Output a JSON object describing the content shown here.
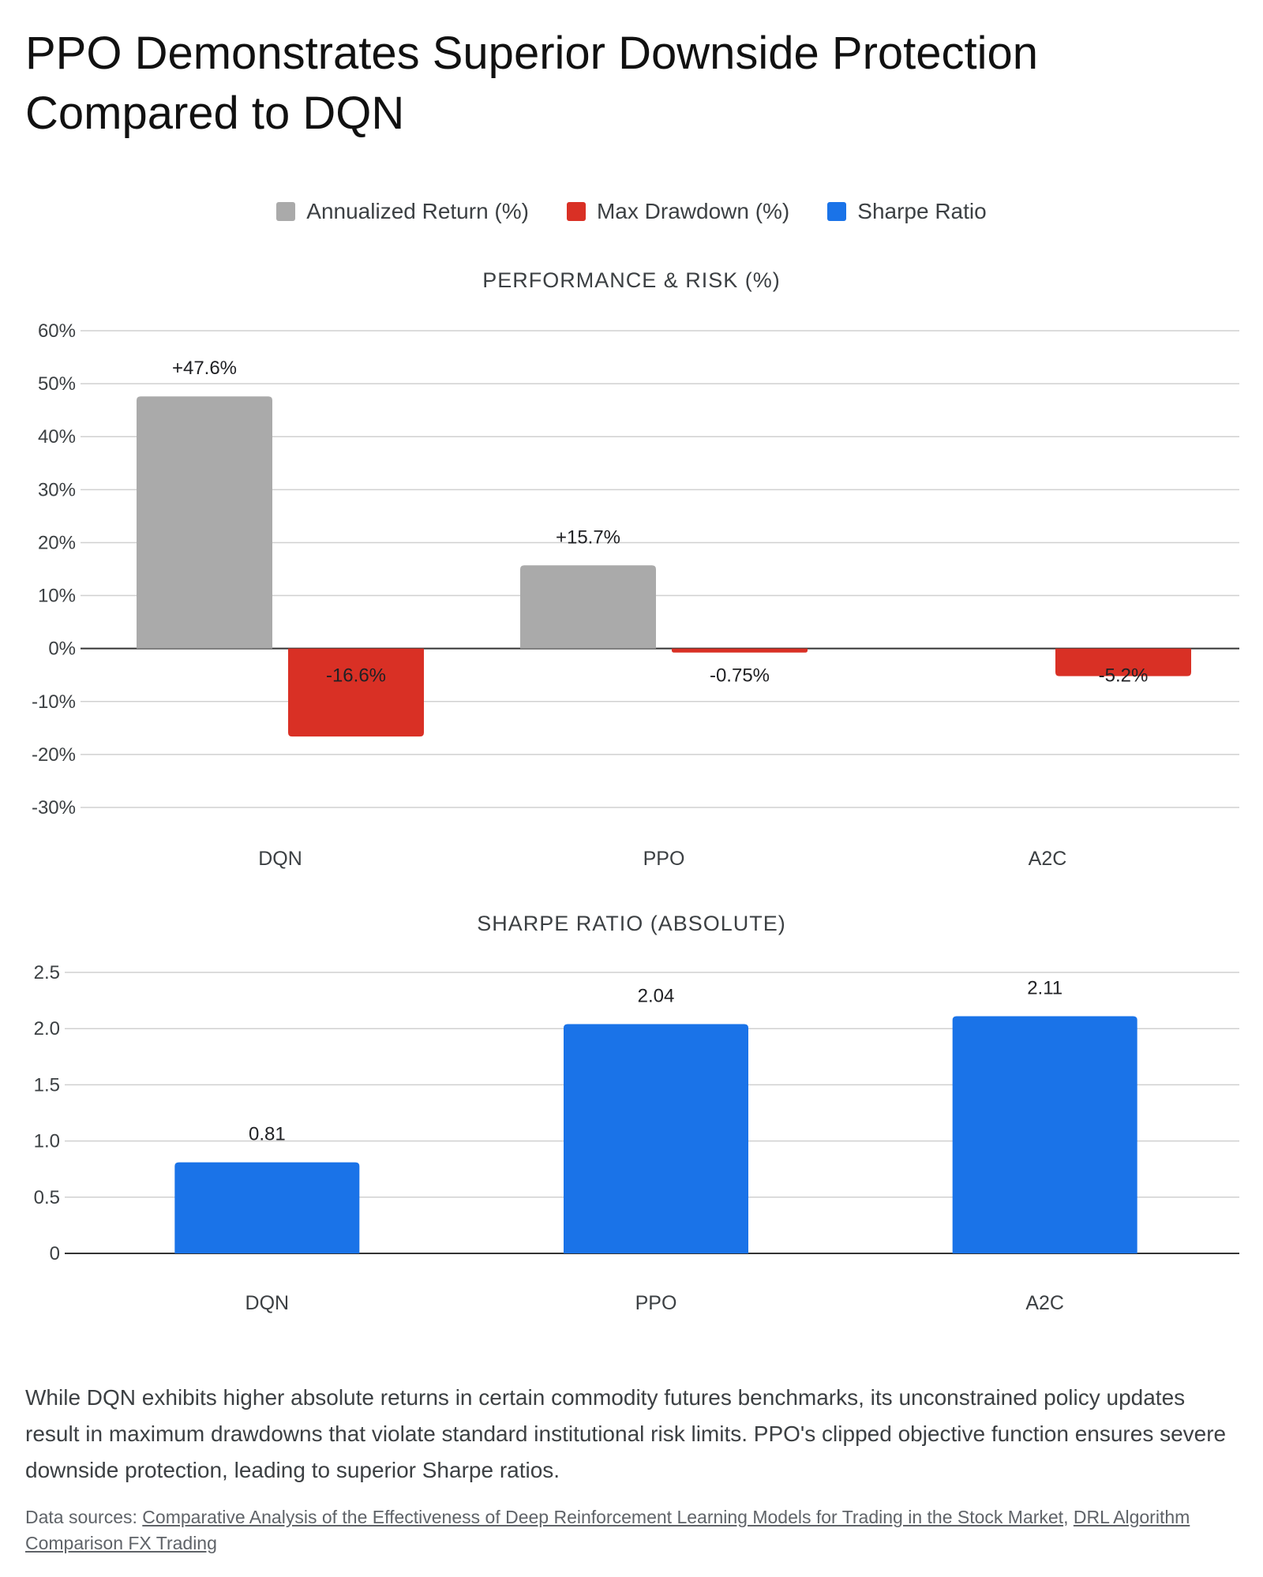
{
  "title": "PPO Demonstrates Superior Downside Protection Compared to DQN",
  "legend": [
    {
      "label": "Annualized Return (%)",
      "color": "#aaaaaa"
    },
    {
      "label": "Max Drawdown (%)",
      "color": "#d93025"
    },
    {
      "label": "Sharpe Ratio",
      "color": "#1a73e8"
    }
  ],
  "chart_data": [
    {
      "type": "bar",
      "title": "PERFORMANCE & RISK (%)",
      "categories": [
        "DQN",
        "PPO",
        "A2C"
      ],
      "series": [
        {
          "name": "Annualized Return (%)",
          "color": "#aaaaaa",
          "values": [
            47.6,
            15.7,
            null
          ],
          "labels": [
            "+47.6%",
            "+15.7%",
            ""
          ]
        },
        {
          "name": "Max Drawdown (%)",
          "color": "#d93025",
          "values": [
            -16.6,
            -0.75,
            -5.2
          ],
          "labels": [
            "-16.6%",
            "-0.75%",
            "-5.2%"
          ]
        }
      ],
      "yticks": [
        "60%",
        "50%",
        "40%",
        "30%",
        "20%",
        "10%",
        "0%",
        "-10%",
        "-20%",
        "-30%"
      ],
      "ylim": [
        -30,
        60
      ],
      "grid": true
    },
    {
      "type": "bar",
      "title": "SHARPE RATIO (ABSOLUTE)",
      "categories": [
        "DQN",
        "PPO",
        "A2C"
      ],
      "series": [
        {
          "name": "Sharpe Ratio",
          "color": "#1a73e8",
          "values": [
            0.81,
            2.04,
            2.11
          ],
          "labels": [
            "0.81",
            "2.04",
            "2.11"
          ]
        }
      ],
      "yticks": [
        "2.5",
        "2.0",
        "1.5",
        "1.0",
        "0.5",
        "0"
      ],
      "ylim": [
        0,
        2.5
      ],
      "grid": true
    }
  ],
  "description": "While DQN exhibits higher absolute returns in certain commodity futures benchmarks, its unconstrained policy updates result in maximum drawdowns that violate standard institutional risk limits. PPO's clipped objective function ensures severe downside protection, leading to superior Sharpe ratios.",
  "sources": {
    "prefix": "Data sources: ",
    "links": [
      "Comparative Analysis of the Effectiveness of Deep Reinforcement Learning Models for Trading in the Stock Market",
      "DRL Algorithm Comparison FX Trading"
    ],
    "separator": ", "
  }
}
